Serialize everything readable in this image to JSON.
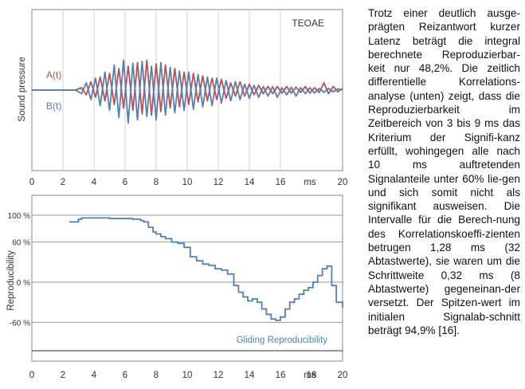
{
  "chart_data": [
    {
      "type": "line",
      "title": "TEOAE",
      "ylabel": "Sound pressure",
      "xlabel": "ms",
      "x_ticks": [
        0,
        2,
        4,
        6,
        8,
        10,
        12,
        14,
        16,
        20
      ],
      "xlim": [
        0,
        20
      ],
      "ylim": [
        -1,
        1
      ],
      "grid": true,
      "series": [
        {
          "name": "A(t)",
          "color": "#c0504d",
          "x": [
            0,
            2.8,
            3.2,
            3.5,
            3.8,
            4.1,
            4.4,
            4.7,
            5.0,
            5.3,
            5.6,
            5.9,
            6.2,
            6.5,
            6.8,
            7.1,
            7.4,
            7.7,
            8.0,
            8.3,
            8.6,
            8.9,
            9.2,
            9.5,
            9.8,
            10.1,
            10.4,
            10.7,
            11.0,
            11.3,
            11.6,
            11.9,
            12.2,
            12.5,
            12.8,
            13.1,
            13.4,
            13.7,
            14.0,
            14.3,
            14.6,
            14.9,
            15.2,
            15.5,
            15.8,
            16.1,
            16.4,
            16.7,
            17.0,
            17.3,
            17.6,
            17.9,
            18.2,
            18.5,
            18.8,
            19.1,
            19.4,
            19.7,
            20.0
          ],
          "values": [
            0,
            0,
            0.04,
            -0.08,
            0.14,
            -0.12,
            0.22,
            -0.18,
            0.28,
            -0.24,
            0.36,
            -0.3,
            0.4,
            -0.34,
            0.46,
            -0.4,
            0.5,
            -0.42,
            0.44,
            -0.36,
            0.42,
            -0.3,
            0.36,
            -0.28,
            0.3,
            -0.24,
            0.28,
            -0.2,
            0.24,
            -0.18,
            0.2,
            -0.16,
            0.18,
            -0.14,
            0.12,
            -0.1,
            0.14,
            -0.1,
            0.1,
            -0.08,
            0.08,
            -0.06,
            0.06,
            -0.06,
            0.06,
            -0.05,
            0.06,
            -0.05,
            0.05,
            -0.04,
            0.06,
            -0.05,
            0.04,
            -0.04,
            0.12,
            -0.06,
            0.06,
            -0.03,
            0.03
          ]
        },
        {
          "name": "B(t)",
          "color": "#4f81bd",
          "x": [
            0,
            2.8,
            3.2,
            3.5,
            3.8,
            4.1,
            4.4,
            4.7,
            5.0,
            5.3,
            5.6,
            5.9,
            6.2,
            6.5,
            6.8,
            7.1,
            7.4,
            7.7,
            8.0,
            8.3,
            8.6,
            8.9,
            9.2,
            9.5,
            9.8,
            10.1,
            10.4,
            10.7,
            11.0,
            11.3,
            11.6,
            11.9,
            12.2,
            12.5,
            12.8,
            13.1,
            13.4,
            13.7,
            14.0,
            14.3,
            14.6,
            14.9,
            15.2,
            15.5,
            15.8,
            16.1,
            16.4,
            16.7,
            17.0,
            17.3,
            17.6,
            17.9,
            18.2,
            18.5,
            18.8,
            19.1,
            19.4,
            19.7,
            20.0
          ],
          "values": [
            0,
            0,
            -0.06,
            0.12,
            -0.16,
            0.2,
            -0.26,
            0.3,
            -0.34,
            0.42,
            -0.46,
            0.5,
            -0.55,
            0.45,
            -0.5,
            0.48,
            -0.44,
            0.4,
            -0.5,
            0.46,
            -0.42,
            0.38,
            -0.38,
            0.32,
            -0.34,
            0.3,
            -0.32,
            0.26,
            -0.28,
            0.22,
            -0.26,
            0.2,
            -0.22,
            0.16,
            -0.18,
            0.14,
            -0.16,
            0.1,
            -0.14,
            0.08,
            -0.12,
            0.06,
            -0.1,
            0.06,
            -0.12,
            0.04,
            -0.08,
            0.05,
            -0.1,
            0.04,
            -0.06,
            0.04,
            -0.05,
            0.03,
            -0.04,
            0.03,
            -0.03,
            0.02,
            0.0
          ]
        }
      ]
    },
    {
      "type": "line",
      "ylabel": "Reproducibility",
      "xlabel": "ms",
      "legend": "Gliding Reproducibility",
      "x_ticks": [
        0,
        2,
        4,
        6,
        8,
        10,
        12,
        14,
        16,
        18,
        20
      ],
      "y_ticks": [
        {
          "value": 100,
          "label": "100 %"
        },
        {
          "value": 60,
          "label": "60 %"
        },
        {
          "value": 0,
          "label": "0 %"
        },
        {
          "value": -60,
          "label": "-60 %"
        }
      ],
      "xlim": [
        0,
        20
      ],
      "ylim": [
        -100,
        110
      ],
      "grid": true,
      "series": [
        {
          "name": "Gliding Reproducibility",
          "color": "#4f81bd",
          "x": [
            2.4,
            2.8,
            3.0,
            3.2,
            4.0,
            5.0,
            6.0,
            6.5,
            7.0,
            7.2,
            7.5,
            7.8,
            8.0,
            8.3,
            8.6,
            9.0,
            9.4,
            9.8,
            10.2,
            10.6,
            11.0,
            11.4,
            11.8,
            12.2,
            12.6,
            13.0,
            13.3,
            13.6,
            13.9,
            14.2,
            14.5,
            14.8,
            15.1,
            15.4,
            15.7,
            16.0,
            16.3,
            16.6,
            16.9,
            17.2,
            17.5,
            17.8,
            18.1,
            18.4,
            18.7,
            19.0,
            19.3,
            19.6,
            20.0
          ],
          "values": [
            90,
            90,
            94,
            96,
            96,
            95,
            95,
            94,
            92,
            90,
            82,
            75,
            72,
            68,
            65,
            60,
            58,
            52,
            38,
            32,
            27,
            25,
            20,
            18,
            12,
            -5,
            -15,
            -22,
            -28,
            -25,
            -30,
            -40,
            -48,
            -55,
            -57,
            -52,
            -40,
            -30,
            -25,
            -18,
            -12,
            -8,
            0,
            10,
            20,
            24,
            -5,
            -30,
            -38
          ]
        }
      ]
    }
  ],
  "paragraph": "Trotz einer deutlich ausge-prägten Reizantwort kurzer Latenz beträgt die integral berechnete Reproduzierbar-keit nur 48,2%. Die zeitlich differentielle Korrelations-analyse (unten) zeigt, dass die Reproduzierbarkeit im Zeitbereich von 3 bis 9 ms das Kriterium der Signifi-kanz erfüllt, wohingegen alle nach 10 ms auftretenden Signalanteile unter 60% lie-gen und sich somit nicht als signifikant ausweisen. Die Intervalle für die Berech-nung des Korrelationskoeffi-zienten betrugen 1,28 ms (32 Abtastwerte), sie waren um die Schrittweite 0,32 ms (8 Abtastwerte) gegeneinan-der versetzt. Der Spitzen-wert im initialen Signalab-schnitt beträgt 94,9% [16]."
}
